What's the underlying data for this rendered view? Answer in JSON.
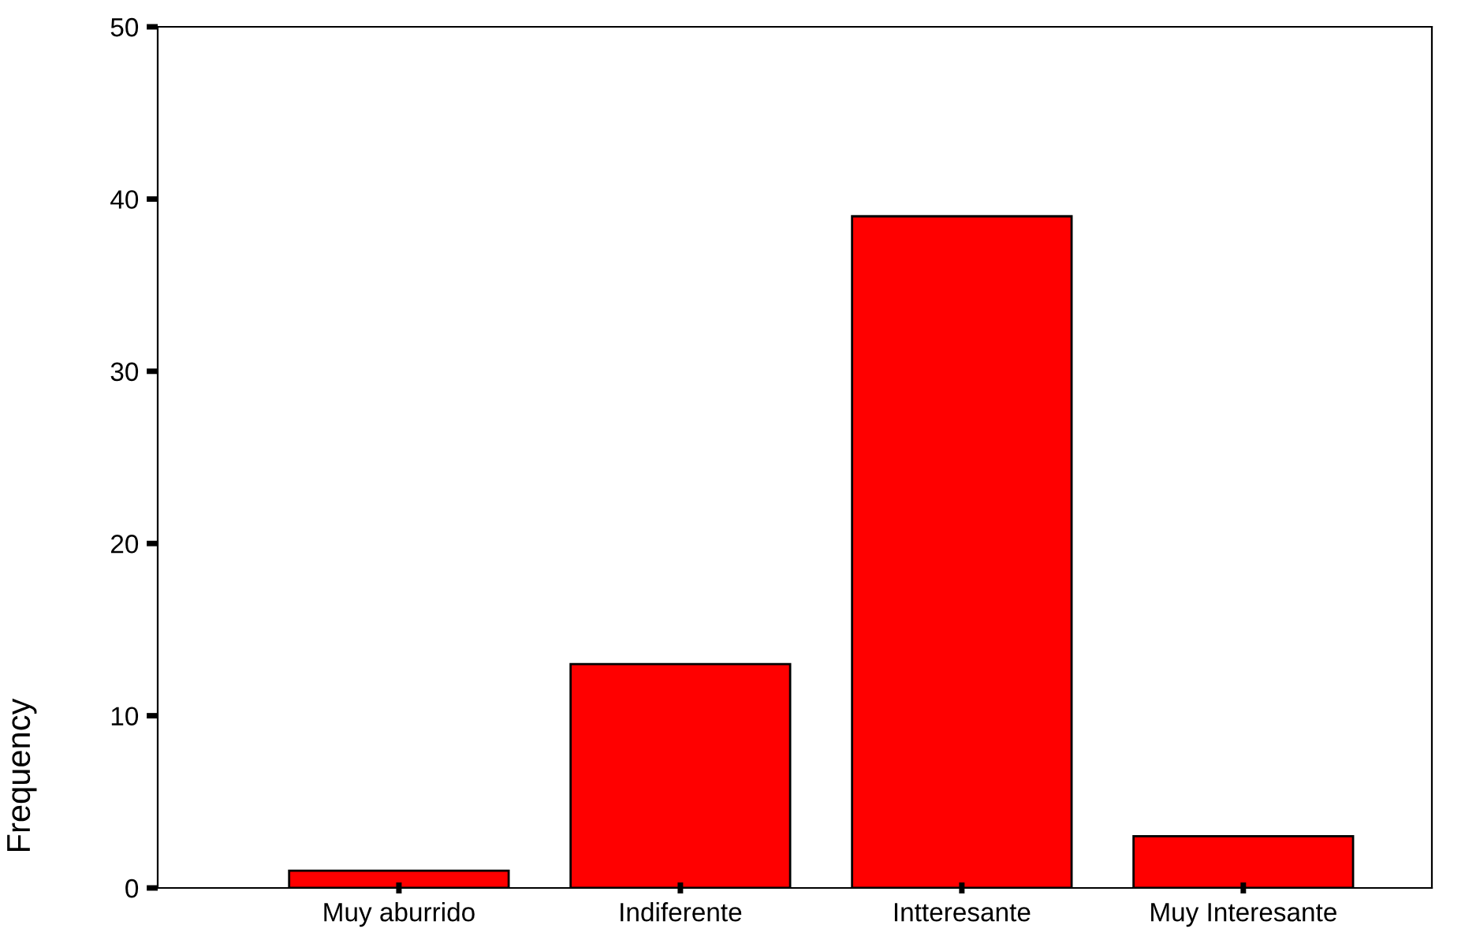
{
  "chart_data": {
    "type": "bar",
    "categories": [
      "Muy aburrido",
      "Indiferente",
      "Intteresante",
      "Muy Interesante"
    ],
    "values": [
      1,
      13,
      39,
      3
    ],
    "color": "#ff0000",
    "ylabel": "Frequency",
    "ylim": [
      0,
      50
    ],
    "yticks": [
      0,
      10,
      20,
      30,
      40,
      50
    ],
    "grid": false,
    "legend": false
  }
}
